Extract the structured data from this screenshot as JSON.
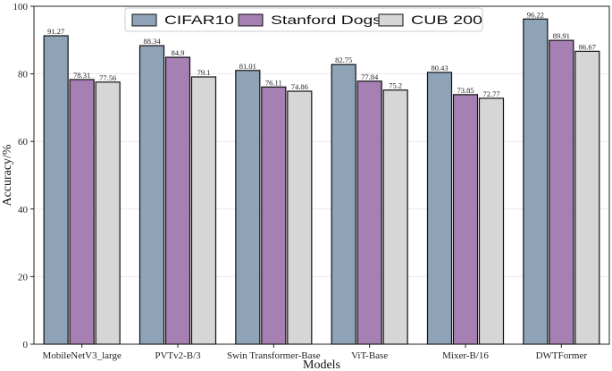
{
  "chart_data": {
    "type": "bar",
    "title": "",
    "xlabel": "Models",
    "ylabel": "Accuracy/%",
    "ylim": [
      0,
      100
    ],
    "yticks": [
      0,
      20,
      40,
      60,
      80,
      100
    ],
    "grid": true,
    "legend_position": "top-center",
    "categories": [
      "MobileNetV3_large",
      "PVTv2-B/3",
      "Swin Transformer-Base",
      "ViT-Base",
      "Mixer-B/16",
      "DWTFormer"
    ],
    "series": [
      {
        "name": "CIFAR10",
        "color": "#8fa3b8",
        "values": [
          91.27,
          88.34,
          81.01,
          82.75,
          80.43,
          96.22
        ],
        "labels": [
          "91.27",
          "88.34",
          "81.01",
          "82.75",
          "80.43",
          "96.22"
        ]
      },
      {
        "name": "Stanford Dogs",
        "color": "#a67fb3",
        "values": [
          78.31,
          84.9,
          76.11,
          77.84,
          73.85,
          89.91
        ],
        "labels": [
          "78.31",
          "84.9",
          "76.11",
          "77.84",
          "73.85",
          "89.91"
        ]
      },
      {
        "name": "CUB 200",
        "color": "#d6d6d6",
        "values": [
          77.56,
          79.1,
          74.86,
          75.2,
          72.77,
          86.67
        ],
        "labels": [
          "77.56",
          "79.1",
          "74.86",
          "75.2",
          "72.77",
          "86.67"
        ]
      }
    ]
  }
}
